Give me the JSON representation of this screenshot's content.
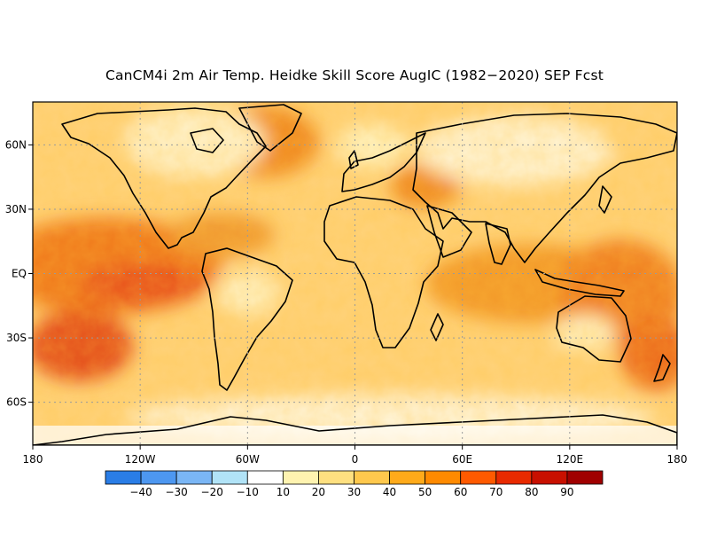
{
  "title": "CanCM4i 2m Air Temp. Heidke Skill Score AugIC (1982−2020) SEP Fcst",
  "map": {
    "lat_labels": [
      "60N",
      "30N",
      "EQ",
      "30S",
      "60S"
    ],
    "lat_values": [
      60,
      30,
      0,
      -30,
      -60
    ],
    "lon_labels": [
      "180",
      "120W",
      "60W",
      "0",
      "60E",
      "120E",
      "180"
    ],
    "lon_values": [
      -180,
      -120,
      -60,
      0,
      60,
      120,
      180
    ],
    "lat_range": [
      -80,
      80
    ],
    "lon_range": [
      -180,
      180
    ],
    "gridlines": "dotted"
  },
  "colorbar": {
    "labels": [
      "−40",
      "−30",
      "−20",
      "−10",
      "10",
      "20",
      "30",
      "40",
      "50",
      "60",
      "70",
      "80",
      "90"
    ],
    "colors": [
      "#2a7de6",
      "#4d97f0",
      "#7ab6f5",
      "#b1e3f7",
      "#ffffff",
      "#fff3b0",
      "#ffe080",
      "#ffc84d",
      "#ffaa1a",
      "#ff8a00",
      "#ff5a00",
      "#e82a00",
      "#c81000",
      "#a00000"
    ]
  },
  "colors": {
    "land_outline": "#000000",
    "grid": "#9a9a9a"
  }
}
